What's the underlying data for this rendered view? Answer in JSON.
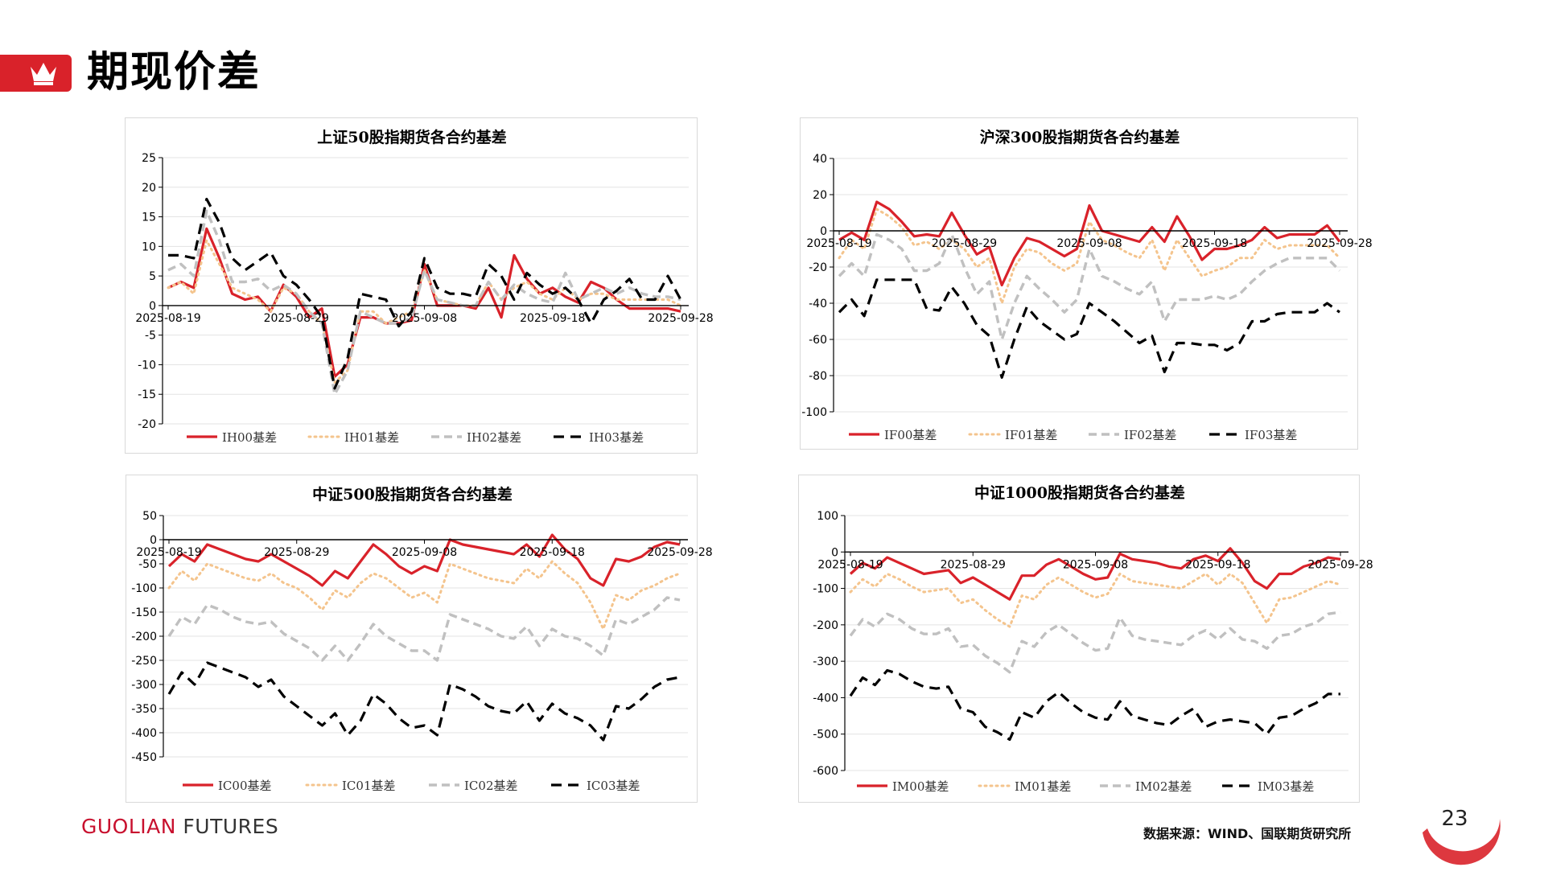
{
  "page": {
    "title": "期现价差",
    "brand_part1": "GUOLIAN",
    "brand_part2": " FUTURES",
    "source": "数据来源：WIND、国联期货研究所",
    "page_number": "23",
    "accent_color": "#d9222a"
  },
  "chart_data": [
    {
      "type": "line",
      "title": "上证50股指期货各合约基差",
      "ylim": [
        -20,
        25
      ],
      "yticks": [
        25,
        20,
        15,
        10,
        5,
        0,
        -5,
        -10,
        -15,
        -20
      ],
      "x_tick_labels": [
        "2025-08-19",
        "2025-08-29",
        "2025-09-08",
        "2025-09-18",
        "2025-09-28"
      ],
      "n_points": 41,
      "series": [
        {
          "name": "IH00基差",
          "style": "solid",
          "color": "#d9222a",
          "values": [
            3,
            4,
            3,
            13,
            8,
            2,
            1,
            1.5,
            -1,
            3.5,
            1.5,
            -2,
            -0.5,
            -12,
            -10,
            -2,
            -2,
            -3,
            -3,
            -2.5,
            7,
            0,
            0,
            0,
            -0.5,
            3,
            -2,
            8.5,
            4.5,
            2,
            3,
            1.5,
            0.5,
            4,
            3,
            1,
            -0.5,
            -0.5,
            -0.5,
            -0.5,
            -1
          ]
        },
        {
          "name": "IH01基差",
          "style": "dotted",
          "color": "#f4c48d",
          "values": [
            3,
            4,
            2,
            11,
            7,
            3,
            2,
            1,
            -1,
            3,
            2,
            -1,
            -3,
            -13,
            -11,
            -1,
            -1,
            -3,
            -2,
            -1,
            6,
            1,
            0.5,
            0,
            0,
            4,
            1,
            3,
            4,
            2,
            1,
            3,
            1,
            2,
            2,
            1,
            1,
            1,
            1,
            1,
            0
          ]
        },
        {
          "name": "IH02基差",
          "style": "dashed",
          "color": "#c0c0c0",
          "values": [
            6,
            7,
            5,
            16,
            11,
            4,
            4,
            4.5,
            2.5,
            3.5,
            2,
            -1,
            -3,
            -15,
            -11,
            -1,
            -2,
            -3,
            -3,
            -2,
            6,
            1,
            0.5,
            0,
            0,
            4,
            1,
            3.5,
            2,
            1,
            0.5,
            5.5,
            1,
            2,
            3,
            2,
            3,
            2,
            1.5,
            1.5,
            1
          ]
        },
        {
          "name": "IH03基差",
          "style": "longdash",
          "color": "#000000",
          "values": [
            8.5,
            8.5,
            8,
            18,
            14,
            8,
            6,
            7.5,
            9,
            5,
            3.5,
            1,
            -2,
            -14,
            -9,
            2,
            1.5,
            1,
            -3.5,
            -1,
            8,
            3,
            2,
            2,
            1.5,
            7,
            5,
            1,
            5.5,
            3.5,
            2,
            3,
            1,
            -3,
            1,
            2.5,
            4.5,
            1,
            1,
            5,
            1
          ]
        }
      ]
    },
    {
      "type": "line",
      "title": "沪深300股指期货各合约基差",
      "ylim": [
        -100,
        40
      ],
      "yticks": [
        40,
        20,
        0,
        -20,
        -40,
        -60,
        -80,
        -100
      ],
      "x_tick_labels": [
        "2025-08-19",
        "2025-08-29",
        "2025-09-08",
        "2025-09-18",
        "2025-09-28"
      ],
      "n_points": 41,
      "series": [
        {
          "name": "IF00基差",
          "style": "solid",
          "color": "#d9222a",
          "values": [
            -5,
            -1,
            -5,
            16,
            12,
            5,
            -3,
            -2,
            -3,
            10,
            -2,
            -13,
            -9,
            -30,
            -15,
            -4,
            -6,
            -10,
            -14,
            -10,
            14,
            0,
            -2,
            -4,
            -6,
            2,
            -6,
            8,
            -3,
            -16,
            -10,
            -10,
            -8,
            -5,
            2,
            -4,
            -2,
            -2,
            -2,
            3,
            -6
          ]
        },
        {
          "name": "IF01基差",
          "style": "dotted",
          "color": "#f4c48d",
          "values": [
            -15,
            -5,
            -10,
            12,
            8,
            2,
            -8,
            -6,
            -10,
            -5,
            -10,
            -20,
            -15,
            -40,
            -20,
            -10,
            -12,
            -18,
            -22,
            -18,
            5,
            -5,
            -8,
            -12,
            -15,
            -5,
            -22,
            -5,
            -15,
            -25,
            -22,
            -20,
            -15,
            -15,
            -5,
            -10,
            -8,
            -8,
            -8,
            -8,
            -15
          ]
        },
        {
          "name": "IF02基差",
          "style": "dashed",
          "color": "#c0c0c0",
          "values": [
            -25,
            -18,
            -25,
            -2,
            -5,
            -10,
            -22,
            -22,
            -18,
            -2,
            -20,
            -35,
            -28,
            -60,
            -40,
            -25,
            -32,
            -38,
            -45,
            -38,
            -10,
            -25,
            -28,
            -32,
            -35,
            -28,
            -50,
            -38,
            -38,
            -38,
            -36,
            -38,
            -35,
            -28,
            -22,
            -18,
            -15,
            -15,
            -15,
            -15,
            -22
          ]
        },
        {
          "name": "IF03基差",
          "style": "longdash",
          "color": "#000000",
          "values": [
            -45,
            -38,
            -47,
            -27,
            -27,
            -27,
            -27,
            -43,
            -44,
            -31,
            -40,
            -52,
            -58,
            -81,
            -60,
            -42,
            -50,
            -55,
            -60,
            -57,
            -40,
            -45,
            -50,
            -56,
            -62,
            -58,
            -78,
            -62,
            -62,
            -63,
            -63,
            -66,
            -62,
            -50,
            -50,
            -46,
            -45,
            -45,
            -45,
            -40,
            -45
          ]
        }
      ]
    },
    {
      "type": "line",
      "title": "中证500股指期货各合约基差",
      "ylim": [
        -450,
        50
      ],
      "yticks": [
        50,
        0,
        -50,
        -100,
        -150,
        -200,
        -250,
        -300,
        -350,
        -400,
        -450
      ],
      "x_tick_labels": [
        "2025-08-19",
        "2025-08-29",
        "2025-09-08",
        "2025-09-18",
        "2025-09-28"
      ],
      "n_points": 41,
      "series": [
        {
          "name": "IC00基差",
          "style": "solid",
          "color": "#d9222a",
          "values": [
            -55,
            -30,
            -45,
            -10,
            -20,
            -30,
            -40,
            -45,
            -30,
            -45,
            -60,
            -75,
            -95,
            -65,
            -80,
            -45,
            -10,
            -30,
            -55,
            -70,
            -55,
            -65,
            0,
            -10,
            -15,
            -20,
            -25,
            -30,
            -10,
            -35,
            10,
            -20,
            -40,
            -80,
            -95,
            -40,
            -45,
            -35,
            -15,
            -5,
            -10
          ]
        },
        {
          "name": "IC01基差",
          "style": "dotted",
          "color": "#f4c48d",
          "values": [
            -100,
            -65,
            -85,
            -50,
            -60,
            -70,
            -80,
            -85,
            -70,
            -90,
            -100,
            -120,
            -145,
            -105,
            -120,
            -90,
            -70,
            -80,
            -100,
            -120,
            -110,
            -130,
            -50,
            -60,
            -70,
            -80,
            -85,
            -90,
            -60,
            -80,
            -45,
            -70,
            -90,
            -130,
            -185,
            -115,
            -125,
            -105,
            -95,
            -80,
            -70
          ]
        },
        {
          "name": "IC02基差",
          "style": "dashed",
          "color": "#c0c0c0",
          "values": [
            -200,
            -160,
            -175,
            -135,
            -145,
            -160,
            -170,
            -175,
            -170,
            -195,
            -210,
            -225,
            -250,
            -220,
            -250,
            -215,
            -175,
            -200,
            -215,
            -230,
            -230,
            -250,
            -155,
            -165,
            -175,
            -185,
            -200,
            -205,
            -180,
            -220,
            -185,
            -200,
            -205,
            -220,
            -240,
            -165,
            -175,
            -160,
            -145,
            -120,
            -125
          ]
        },
        {
          "name": "IC03基差",
          "style": "longdash",
          "color": "#000000",
          "values": [
            -320,
            -275,
            -300,
            -255,
            -265,
            -275,
            -285,
            -305,
            -290,
            -325,
            -345,
            -365,
            -385,
            -360,
            -405,
            -375,
            -320,
            -340,
            -370,
            -390,
            -385,
            -405,
            -300,
            -310,
            -325,
            -345,
            -355,
            -360,
            -335,
            -375,
            -340,
            -360,
            -370,
            -385,
            -415,
            -345,
            -350,
            -330,
            -305,
            -290,
            -285
          ]
        }
      ]
    },
    {
      "type": "line",
      "title": "中证1000股指期货各合约基差",
      "ylim": [
        -600,
        100
      ],
      "yticks": [
        100,
        0,
        -100,
        -200,
        -300,
        -400,
        -500,
        -600
      ],
      "x_tick_labels": [
        "2025-08-19",
        "2025-08-29",
        "2025-09-08",
        "2025-09-18",
        "2025-09-28"
      ],
      "n_points": 41,
      "series": [
        {
          "name": "IM00基差",
          "style": "solid",
          "color": "#d9222a",
          "values": [
            -60,
            -30,
            -45,
            -15,
            -30,
            -45,
            -60,
            -55,
            -50,
            -85,
            -70,
            -90,
            -110,
            -130,
            -65,
            -65,
            -35,
            -20,
            -40,
            -60,
            -75,
            -70,
            -5,
            -20,
            -25,
            -30,
            -40,
            -45,
            -20,
            -10,
            -25,
            10,
            -30,
            -80,
            -100,
            -60,
            -60,
            -40,
            -30,
            -15,
            -20
          ]
        },
        {
          "name": "IM01基差",
          "style": "dotted",
          "color": "#f4c48d",
          "values": [
            -110,
            -75,
            -95,
            -60,
            -75,
            -95,
            -110,
            -105,
            -100,
            -140,
            -130,
            -160,
            -185,
            -205,
            -120,
            -130,
            -90,
            -70,
            -90,
            -110,
            -125,
            -115,
            -60,
            -80,
            -85,
            -90,
            -95,
            -100,
            -80,
            -60,
            -90,
            -60,
            -85,
            -140,
            -195,
            -130,
            -125,
            -110,
            -95,
            -80,
            -90
          ]
        },
        {
          "name": "IM02基差",
          "style": "dashed",
          "color": "#c0c0c0",
          "values": [
            -230,
            -185,
            -205,
            -170,
            -185,
            -210,
            -225,
            -225,
            -210,
            -260,
            -255,
            -285,
            -305,
            -330,
            -245,
            -260,
            -220,
            -200,
            -225,
            -250,
            -270,
            -265,
            -180,
            -230,
            -240,
            -245,
            -250,
            -255,
            -230,
            -215,
            -240,
            -210,
            -240,
            -245,
            -265,
            -230,
            -225,
            -205,
            -195,
            -170,
            -165
          ]
        },
        {
          "name": "IM03基差",
          "style": "longdash",
          "color": "#000000",
          "values": [
            -395,
            -345,
            -365,
            -325,
            -335,
            -355,
            -370,
            -375,
            -370,
            -430,
            -440,
            -480,
            -495,
            -515,
            -440,
            -455,
            -410,
            -385,
            -415,
            -440,
            -455,
            -460,
            -410,
            -450,
            -460,
            -470,
            -475,
            -450,
            -430,
            -480,
            -465,
            -460,
            -465,
            -470,
            -500,
            -455,
            -450,
            -430,
            -415,
            -390,
            -390
          ]
        }
      ]
    }
  ]
}
